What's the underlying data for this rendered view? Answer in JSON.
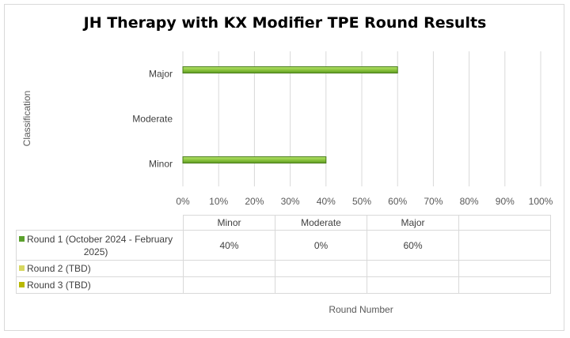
{
  "chart_data": {
    "type": "bar",
    "orientation": "horizontal",
    "title": "JH Therapy with KX Modifier TPE Round Results",
    "ylabel": "Classification",
    "xlabel": "Round Number",
    "categories": [
      "Minor",
      "Moderate",
      "Major"
    ],
    "x_ticks": [
      "0%",
      "10%",
      "20%",
      "30%",
      "40%",
      "50%",
      "60%",
      "70%",
      "80%",
      "90%",
      "100%"
    ],
    "xlim": [
      0,
      100
    ],
    "grid": true,
    "legend": "data table below chart",
    "series": [
      {
        "name": "Round 1 (October 2024 - February 2025)",
        "name_line1": "Round 1 (October 2024 - February",
        "name_line2": "2025)",
        "values": [
          40,
          0,
          60
        ],
        "labels": [
          "40%",
          "0%",
          "60%"
        ],
        "color": "#8cc63f"
      },
      {
        "name": "Round 2 (TBD)",
        "values": [
          null,
          null,
          null
        ],
        "labels": [
          "",
          "",
          ""
        ],
        "color": "#e2e27a"
      },
      {
        "name": "Round 3 (TBD)",
        "values": [
          null,
          null,
          null
        ],
        "labels": [
          "",
          "",
          ""
        ],
        "color": "#c9c900"
      }
    ]
  }
}
